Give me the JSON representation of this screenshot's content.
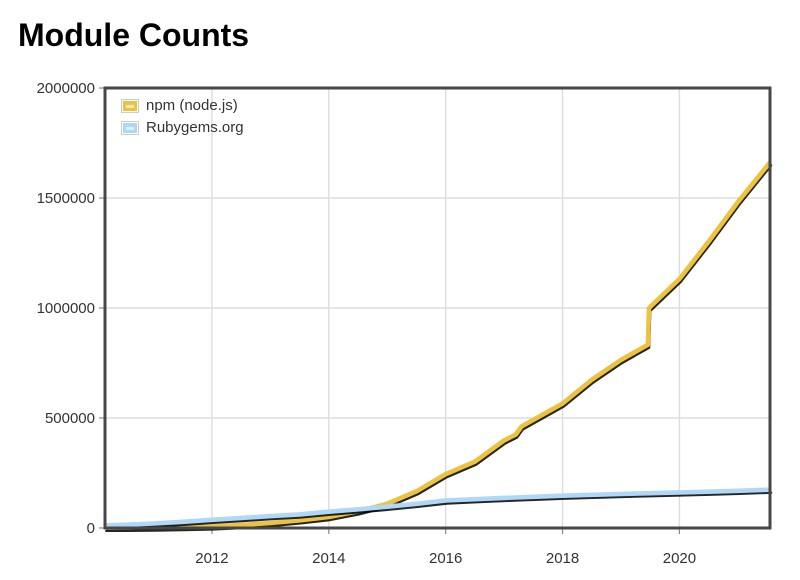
{
  "chart_data": {
    "type": "line",
    "title": "Module Counts",
    "xlabel": "",
    "ylabel": "",
    "xlim": [
      2010.17,
      2021.55
    ],
    "ylim": [
      0,
      2000000
    ],
    "grid": true,
    "legend_position": "top-left",
    "background_color": "#ffffff",
    "gridline_color": "#dddddd",
    "border_color": "#474747",
    "tick_label_color": "#333333",
    "x_ticks": [
      {
        "value": 2012,
        "label": "2012"
      },
      {
        "value": 2014,
        "label": "2014"
      },
      {
        "value": 2016,
        "label": "2016"
      },
      {
        "value": 2018,
        "label": "2018"
      },
      {
        "value": 2020,
        "label": "2020"
      }
    ],
    "y_ticks": [
      {
        "value": 0,
        "label": "0"
      },
      {
        "value": 500000,
        "label": "500000"
      },
      {
        "value": 1000000,
        "label": "1000000"
      },
      {
        "value": 1500000,
        "label": "1500000"
      },
      {
        "value": 2000000,
        "label": "2000000"
      }
    ],
    "series": [
      {
        "name": "npm (node.js)",
        "color": "#edc240",
        "swatch_dash_color": "#f8e7b0",
        "shadow_color": "#000000",
        "points": [
          [
            2010.17,
            200
          ],
          [
            2010.5,
            800
          ],
          [
            2011.0,
            2300
          ],
          [
            2011.5,
            4200
          ],
          [
            2012.0,
            7200
          ],
          [
            2012.5,
            13500
          ],
          [
            2013.0,
            22500
          ],
          [
            2013.5,
            35000
          ],
          [
            2014.0,
            50000
          ],
          [
            2014.5,
            76000
          ],
          [
            2015.0,
            110000
          ],
          [
            2015.5,
            167000
          ],
          [
            2016.0,
            245000
          ],
          [
            2016.5,
            302000
          ],
          [
            2017.0,
            398000
          ],
          [
            2017.2,
            425000
          ],
          [
            2017.3,
            462000
          ],
          [
            2018.0,
            566000
          ],
          [
            2018.5,
            674000
          ],
          [
            2019.0,
            764000
          ],
          [
            2019.46,
            833000
          ],
          [
            2019.48,
            1000000
          ],
          [
            2020.0,
            1132000
          ],
          [
            2020.5,
            1302000
          ],
          [
            2021.0,
            1482000
          ],
          [
            2021.55,
            1662000
          ]
        ]
      },
      {
        "name": "Rubygems.org",
        "color": "#afd8f8",
        "swatch_dash_color": "#e0f0fc",
        "shadow_color": "#000000",
        "points": [
          [
            2010.17,
            12000
          ],
          [
            2010.5,
            14500
          ],
          [
            2011.0,
            20500
          ],
          [
            2011.5,
            28000
          ],
          [
            2012.0,
            37500
          ],
          [
            2012.5,
            45500
          ],
          [
            2013.0,
            54000
          ],
          [
            2013.5,
            62000
          ],
          [
            2014.0,
            74000
          ],
          [
            2014.5,
            85000
          ],
          [
            2015.0,
            97000
          ],
          [
            2015.5,
            110000
          ],
          [
            2016.0,
            125000
          ],
          [
            2016.5,
            131000
          ],
          [
            2017.0,
            137000
          ],
          [
            2017.5,
            142000
          ],
          [
            2018.0,
            147000
          ],
          [
            2018.5,
            151000
          ],
          [
            2019.0,
            155000
          ],
          [
            2019.5,
            158000
          ],
          [
            2020.0,
            162000
          ],
          [
            2020.5,
            165000
          ],
          [
            2021.0,
            169000
          ],
          [
            2021.55,
            174000
          ]
        ]
      }
    ]
  }
}
